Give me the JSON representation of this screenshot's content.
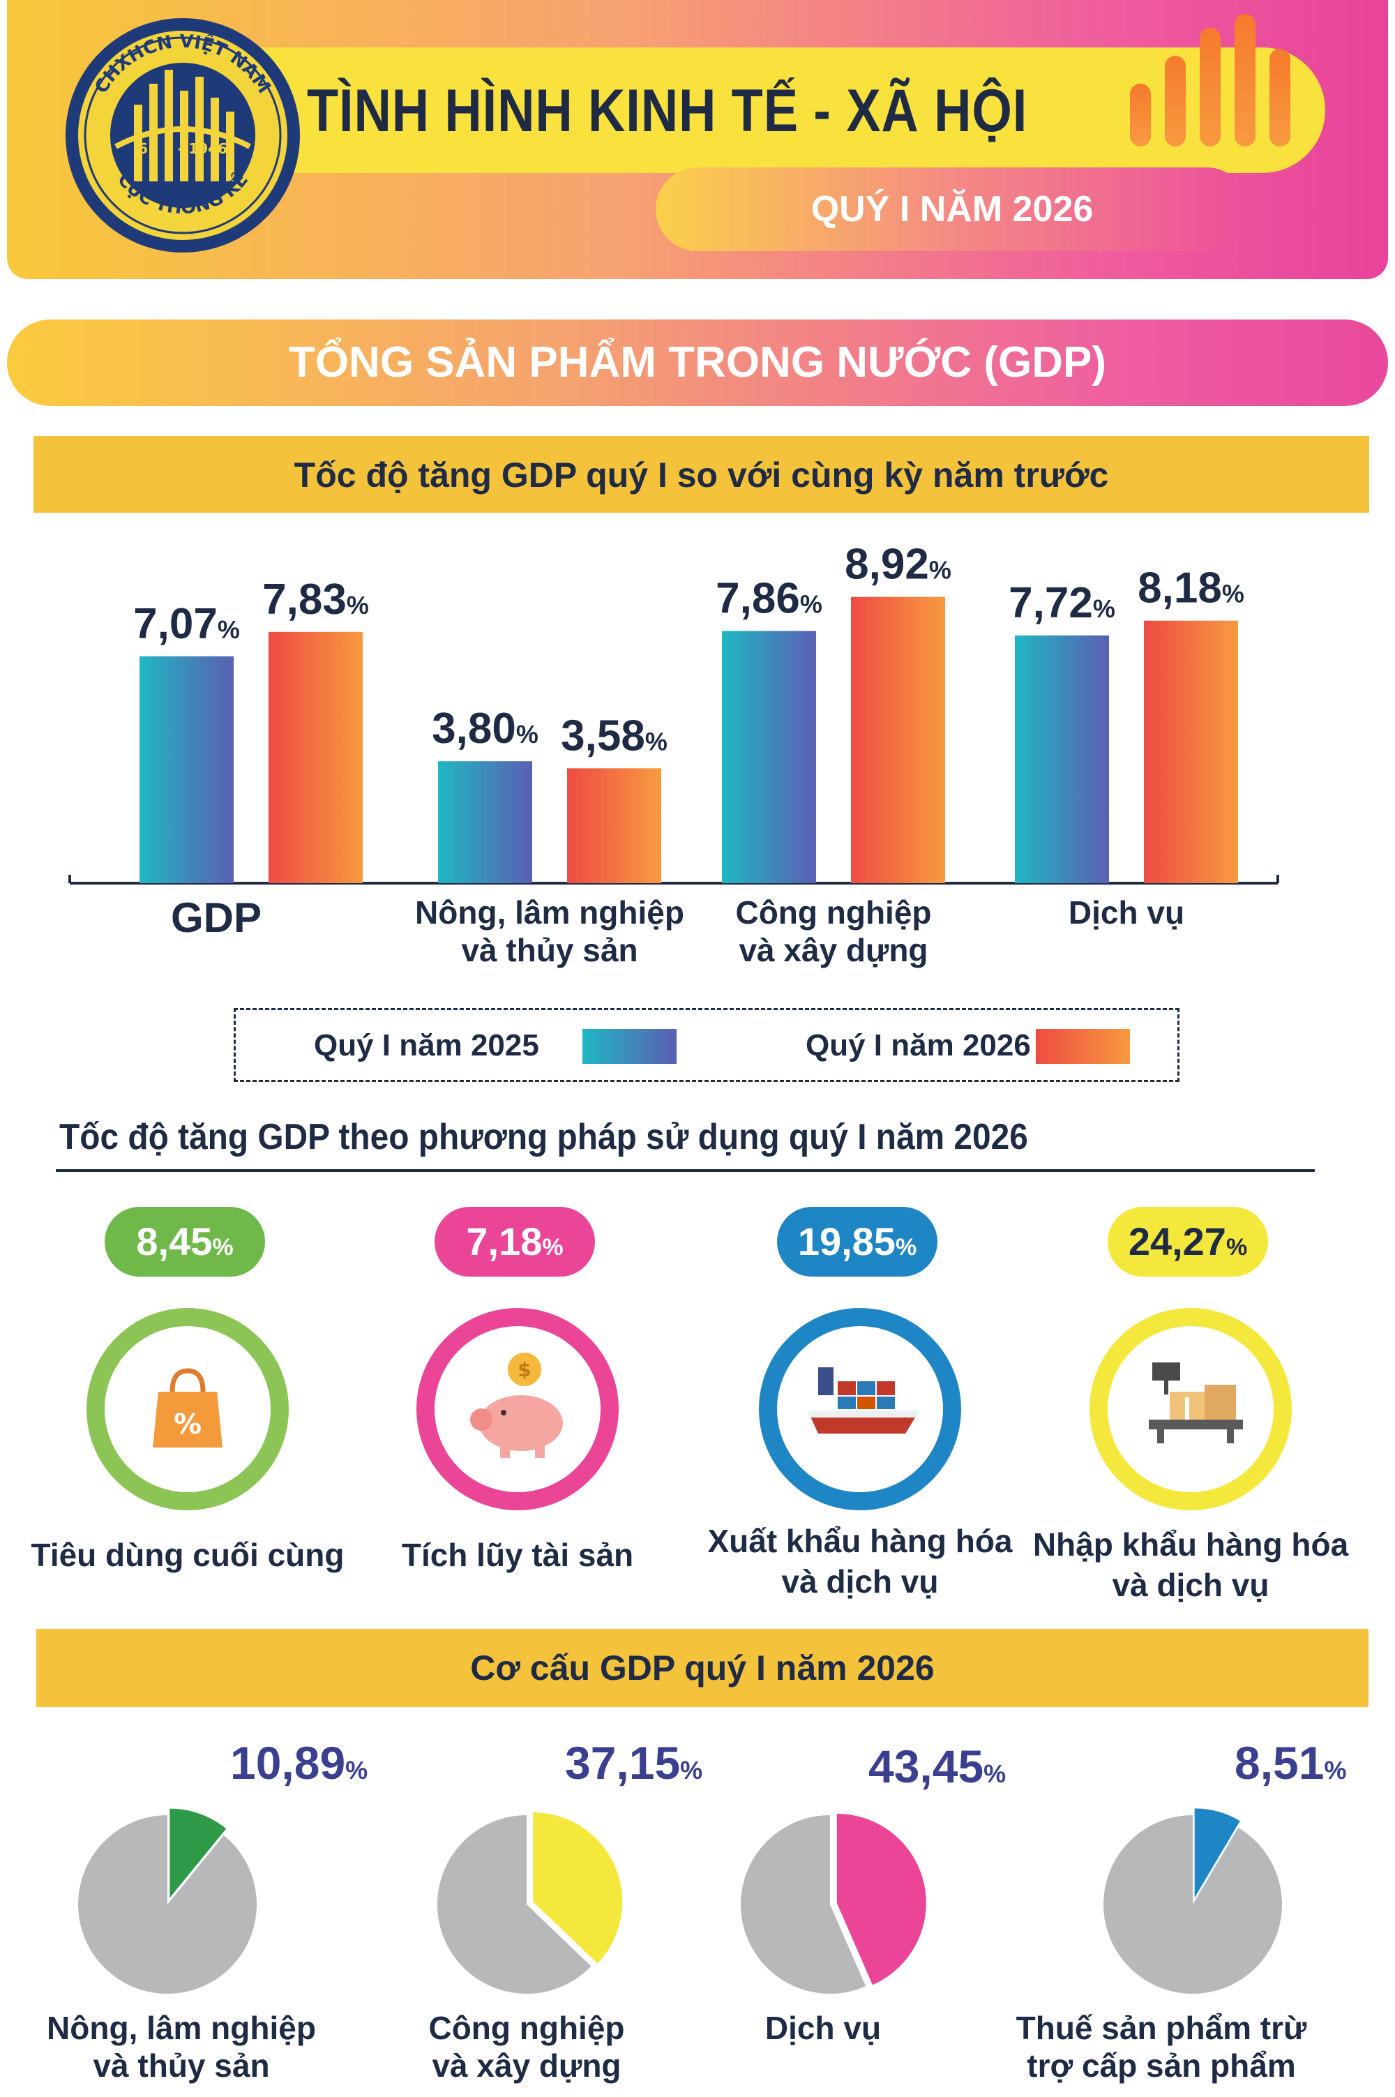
{
  "header": {
    "title": "TÌNH HÌNH KINH TẾ - XÃ HỘI",
    "subtitle": "QUÝ I NĂM 2026",
    "logo": {
      "top_text": "CHXHCN VIỆT NAM",
      "date": "6 - 5 - 1946",
      "bottom_text": "CỤC THỐNG KÊ"
    }
  },
  "section_title": "TỔNG SẢN PHẨM TRONG NƯỚC (GDP)",
  "growth_title": "Tốc độ tăng GDP quý I so với cùng kỳ năm trước",
  "chart_data": [
    {
      "type": "bar",
      "title": "Tốc độ tăng GDP quý I so với cùng kỳ năm trước",
      "categories": [
        "GDP",
        "Nông, lâm nghiệp và thủy sản",
        "Công nghiệp và xây dựng",
        "Dịch vụ"
      ],
      "category_lines": [
        [
          "GDP"
        ],
        [
          "Nông, lâm nghiệp",
          "và thủy sản"
        ],
        [
          "Công nghiệp",
          "và xây dựng"
        ],
        [
          "Dịch vụ"
        ]
      ],
      "series": [
        {
          "name": "Quý I năm 2025",
          "values": [
            7.07,
            3.8,
            7.86,
            7.72
          ],
          "labels": [
            "7,07",
            "3,80",
            "7,86",
            "7,72"
          ]
        },
        {
          "name": "Quý I năm 2026",
          "values": [
            7.83,
            3.58,
            8.92,
            8.18
          ],
          "labels": [
            "7,83",
            "3,58",
            "8,92",
            "8,18"
          ]
        }
      ],
      "unit": "%",
      "ylim": [
        0,
        10
      ]
    },
    {
      "type": "pie",
      "title": "Cơ cấu GDP quý I năm 2026",
      "slices": [
        {
          "name": "Nông, lâm nghiệp và thủy sản",
          "lines": [
            "Nông, lâm nghiệp",
            "và thủy sản"
          ],
          "value": 10.89,
          "label": "10,89",
          "color": "#2e9a48"
        },
        {
          "name": "Công nghiệp và xây dựng",
          "lines": [
            "Công nghiệp",
            "và xây dựng"
          ],
          "value": 37.15,
          "label": "37,15",
          "color": "#f4e83c"
        },
        {
          "name": "Dịch vụ",
          "lines": [
            "Dịch vụ"
          ],
          "value": 43.45,
          "label": "43,45",
          "color": "#ea4596"
        },
        {
          "name": "Thuế sản phẩm trừ trợ cấp sản phẩm",
          "lines": [
            "Thuế sản phẩm trừ",
            "trợ cấp sản phẩm"
          ],
          "value": 8.51,
          "label": "8,51",
          "color": "#1f86c6"
        }
      ],
      "remainder_color": "#b6b8ba",
      "unit": "%"
    }
  ],
  "legend": {
    "y2025": "Quý I năm 2025",
    "y2026": "Quý I năm 2026"
  },
  "usage": {
    "title": "Tốc độ tăng GDP theo phương pháp sử dụng quý I năm 2026",
    "items": [
      {
        "value": "8,45",
        "unit": "%",
        "label1": "Tiêu dùng cuối cùng",
        "label2": "",
        "icon": "shopping-bag-icon",
        "color": "#6fb84a",
        "ring": "#8cc456"
      },
      {
        "value": "7,18",
        "unit": "%",
        "label1": "Tích lũy tài sản",
        "label2": "",
        "icon": "piggy-bank-icon",
        "color": "#ea4596",
        "ring": "#ea4596"
      },
      {
        "value": "19,85",
        "unit": "%",
        "label1": "Xuất khẩu hàng hóa",
        "label2": "và dịch vụ",
        "icon": "cargo-ship-icon",
        "color": "#1f86c6",
        "ring": "#1f86c6"
      },
      {
        "value": "24,27",
        "unit": "%",
        "label1": "Nhập khẩu hàng hóa",
        "label2": "và dịch vụ",
        "icon": "boxes-scale-icon",
        "color": "#f4e83c",
        "ring": "#f4e83c"
      }
    ]
  },
  "structure_title": "Cơ cấu GDP quý I năm 2026"
}
